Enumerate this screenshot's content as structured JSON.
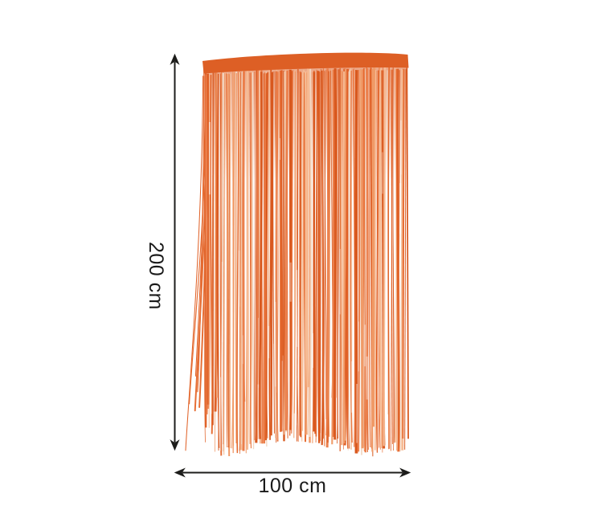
{
  "dimensions": {
    "height_label": "200 cm",
    "width_label": "100 cm"
  },
  "colors": {
    "background": "#ffffff",
    "dimension_line": "#1d1d1b",
    "label_text": "#1a1a1a",
    "band": "#dd5f25",
    "strand_palette": [
      "#d8581e",
      "#e06127",
      "#e66d33",
      "#eb7f4b",
      "#f09a67",
      "#f6bb94",
      "#f2d8c3"
    ]
  },
  "curtain": {
    "strand_count": 175,
    "left_splay_count": 6,
    "shine_streak_count": 28
  }
}
